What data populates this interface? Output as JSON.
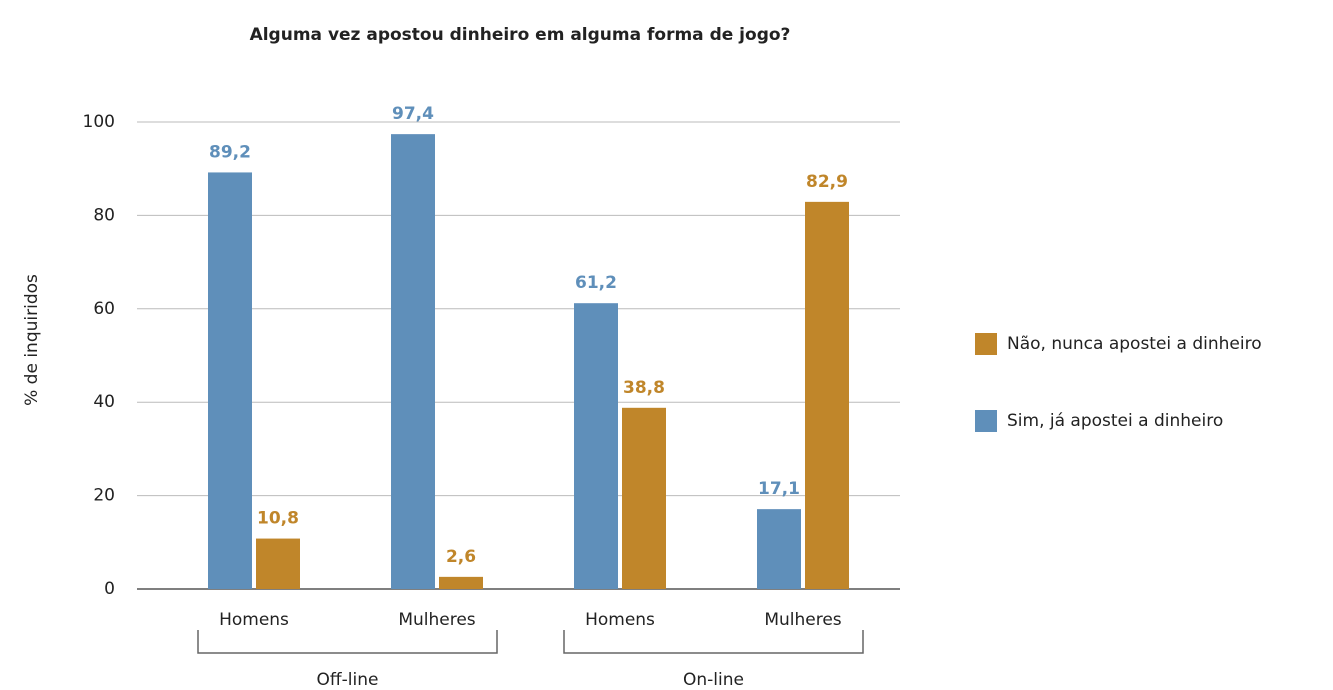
{
  "chart_data": {
    "type": "bar",
    "title": "Alguma vez apostou dinheiro em alguma forma de jogo?",
    "ylabel": "% de inquiridos",
    "categories": [
      "Homens",
      "Mulheres",
      "Homens",
      "Mulheres"
    ],
    "category_groups": [
      "Off-line",
      "On-line"
    ],
    "series": [
      {
        "name": "Não, nunca apostei a dinheiro",
        "color": "#c0862a",
        "values": [
          10.8,
          2.6,
          38.8,
          82.9
        ],
        "value_labels": [
          "10,8",
          "2,6",
          "38,8",
          "82,9"
        ]
      },
      {
        "name": "Sim, já apostei a dinheiro",
        "color": "#5f8fba",
        "values": [
          89.2,
          97.4,
          61.2,
          17.1
        ],
        "value_labels": [
          "89,2",
          "97,4",
          "61,2",
          "17,1"
        ]
      }
    ],
    "ylim": [
      0,
      100
    ],
    "yticks": [
      0,
      20,
      40,
      60,
      80,
      100
    ],
    "grid": true,
    "legend": "right"
  }
}
